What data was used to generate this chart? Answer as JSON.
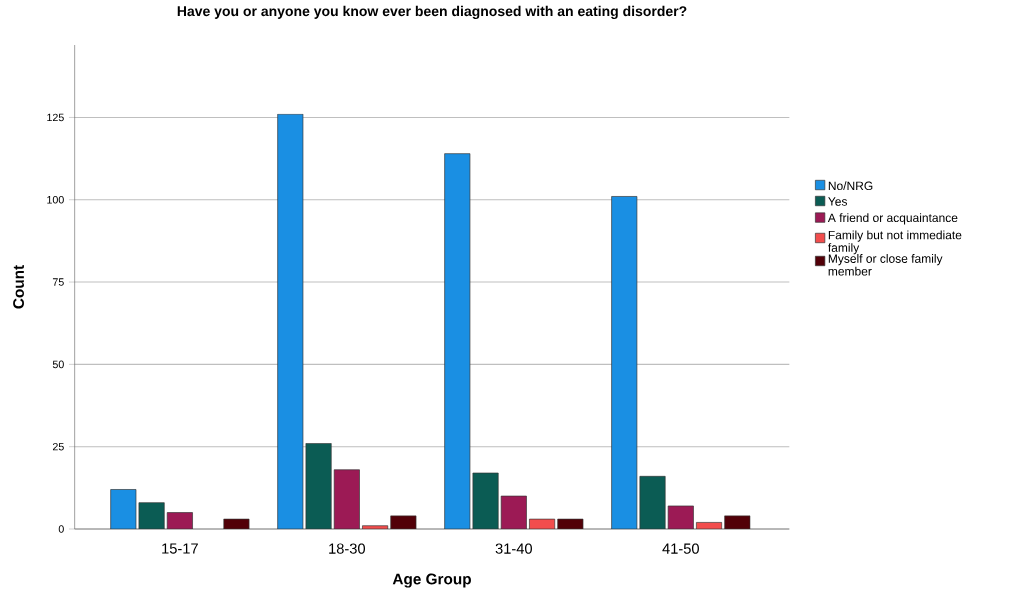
{
  "chart_data": {
    "type": "bar",
    "title": "Have you or anyone you know ever been diagnosed with an eating disorder?",
    "xlabel": "Age Group",
    "ylabel": "Count",
    "categories": [
      "15-17",
      "18-30",
      "31-40",
      "41-50"
    ],
    "series": [
      {
        "name": "No/NRG",
        "color": "#1a8fe3",
        "values": [
          12,
          126,
          114,
          101
        ]
      },
      {
        "name": "Yes",
        "color": "#0b5c54",
        "values": [
          8,
          26,
          17,
          16
        ]
      },
      {
        "name": "A friend or acquaintance",
        "color": "#9c1a55",
        "values": [
          5,
          18,
          10,
          7
        ]
      },
      {
        "name": "Family but not immediate family",
        "color": "#f24d4d",
        "values": [
          null,
          1,
          3,
          2
        ]
      },
      {
        "name": "Myself or close family member",
        "color": "#520008",
        "values": [
          3,
          4,
          3,
          4
        ]
      }
    ],
    "ylim": [
      0,
      147
    ],
    "yticks": [
      0,
      25,
      50,
      75,
      100,
      125
    ],
    "grid": "y",
    "legend": "right"
  }
}
